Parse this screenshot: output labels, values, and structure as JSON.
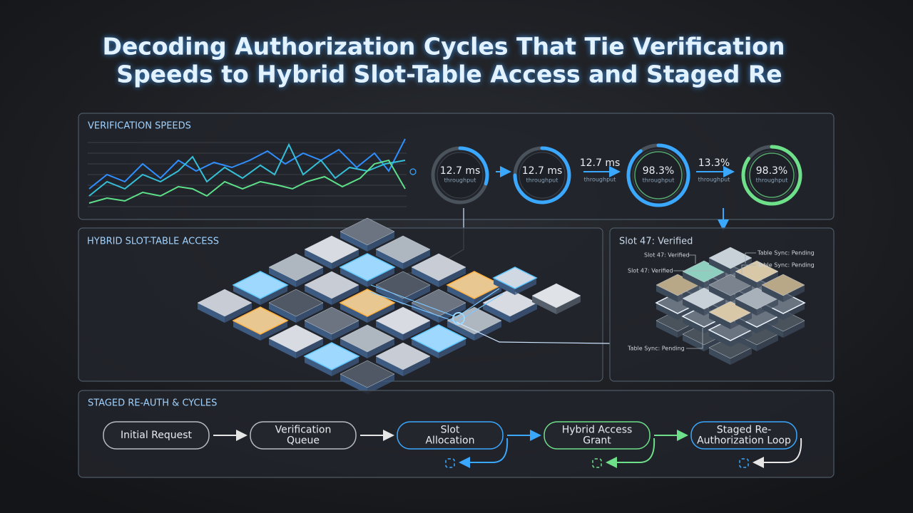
{
  "header": {
    "title_lines": [
      "Decoding Authorization Cycles That Tie Verification",
      "Speeds to Hybrid Slot-Table Access and Staged Re"
    ]
  },
  "speeds": {
    "label": "VERIFICATION SPEEDS",
    "gauges": [
      {
        "value": "12.7 ms",
        "caption": "throughput"
      },
      {
        "value": "12.7 ms",
        "caption": "throughput"
      },
      {
        "value": "98.3%",
        "caption": "throughput"
      },
      {
        "value": "98.3%",
        "caption": "throughput"
      }
    ],
    "arrow_labels": [
      {
        "value": "12.7 ms",
        "caption": "throughput"
      },
      {
        "value": "13.3%",
        "caption": "throughput"
      }
    ]
  },
  "slot_table": {
    "label": "HYBRID SLOT-TABLE ACCESS"
  },
  "slot_detail": {
    "label": "Slot 47: Verified",
    "callouts": [
      "Slot 47: Verified",
      "Slot 47: Verified",
      "Table Sync: Pending",
      "Table Sync: Pending",
      "Table Sync: Pending"
    ]
  },
  "cycles": {
    "label": "STAGED RE-AUTH & CYCLES",
    "steps": [
      [
        "Initial Request"
      ],
      [
        "Verification",
        "Queue"
      ],
      [
        "Slot",
        "Allocation"
      ],
      [
        "Hybrid Access",
        "Grant"
      ],
      [
        "Staged Re-",
        "Authorization Loop"
      ]
    ]
  }
}
